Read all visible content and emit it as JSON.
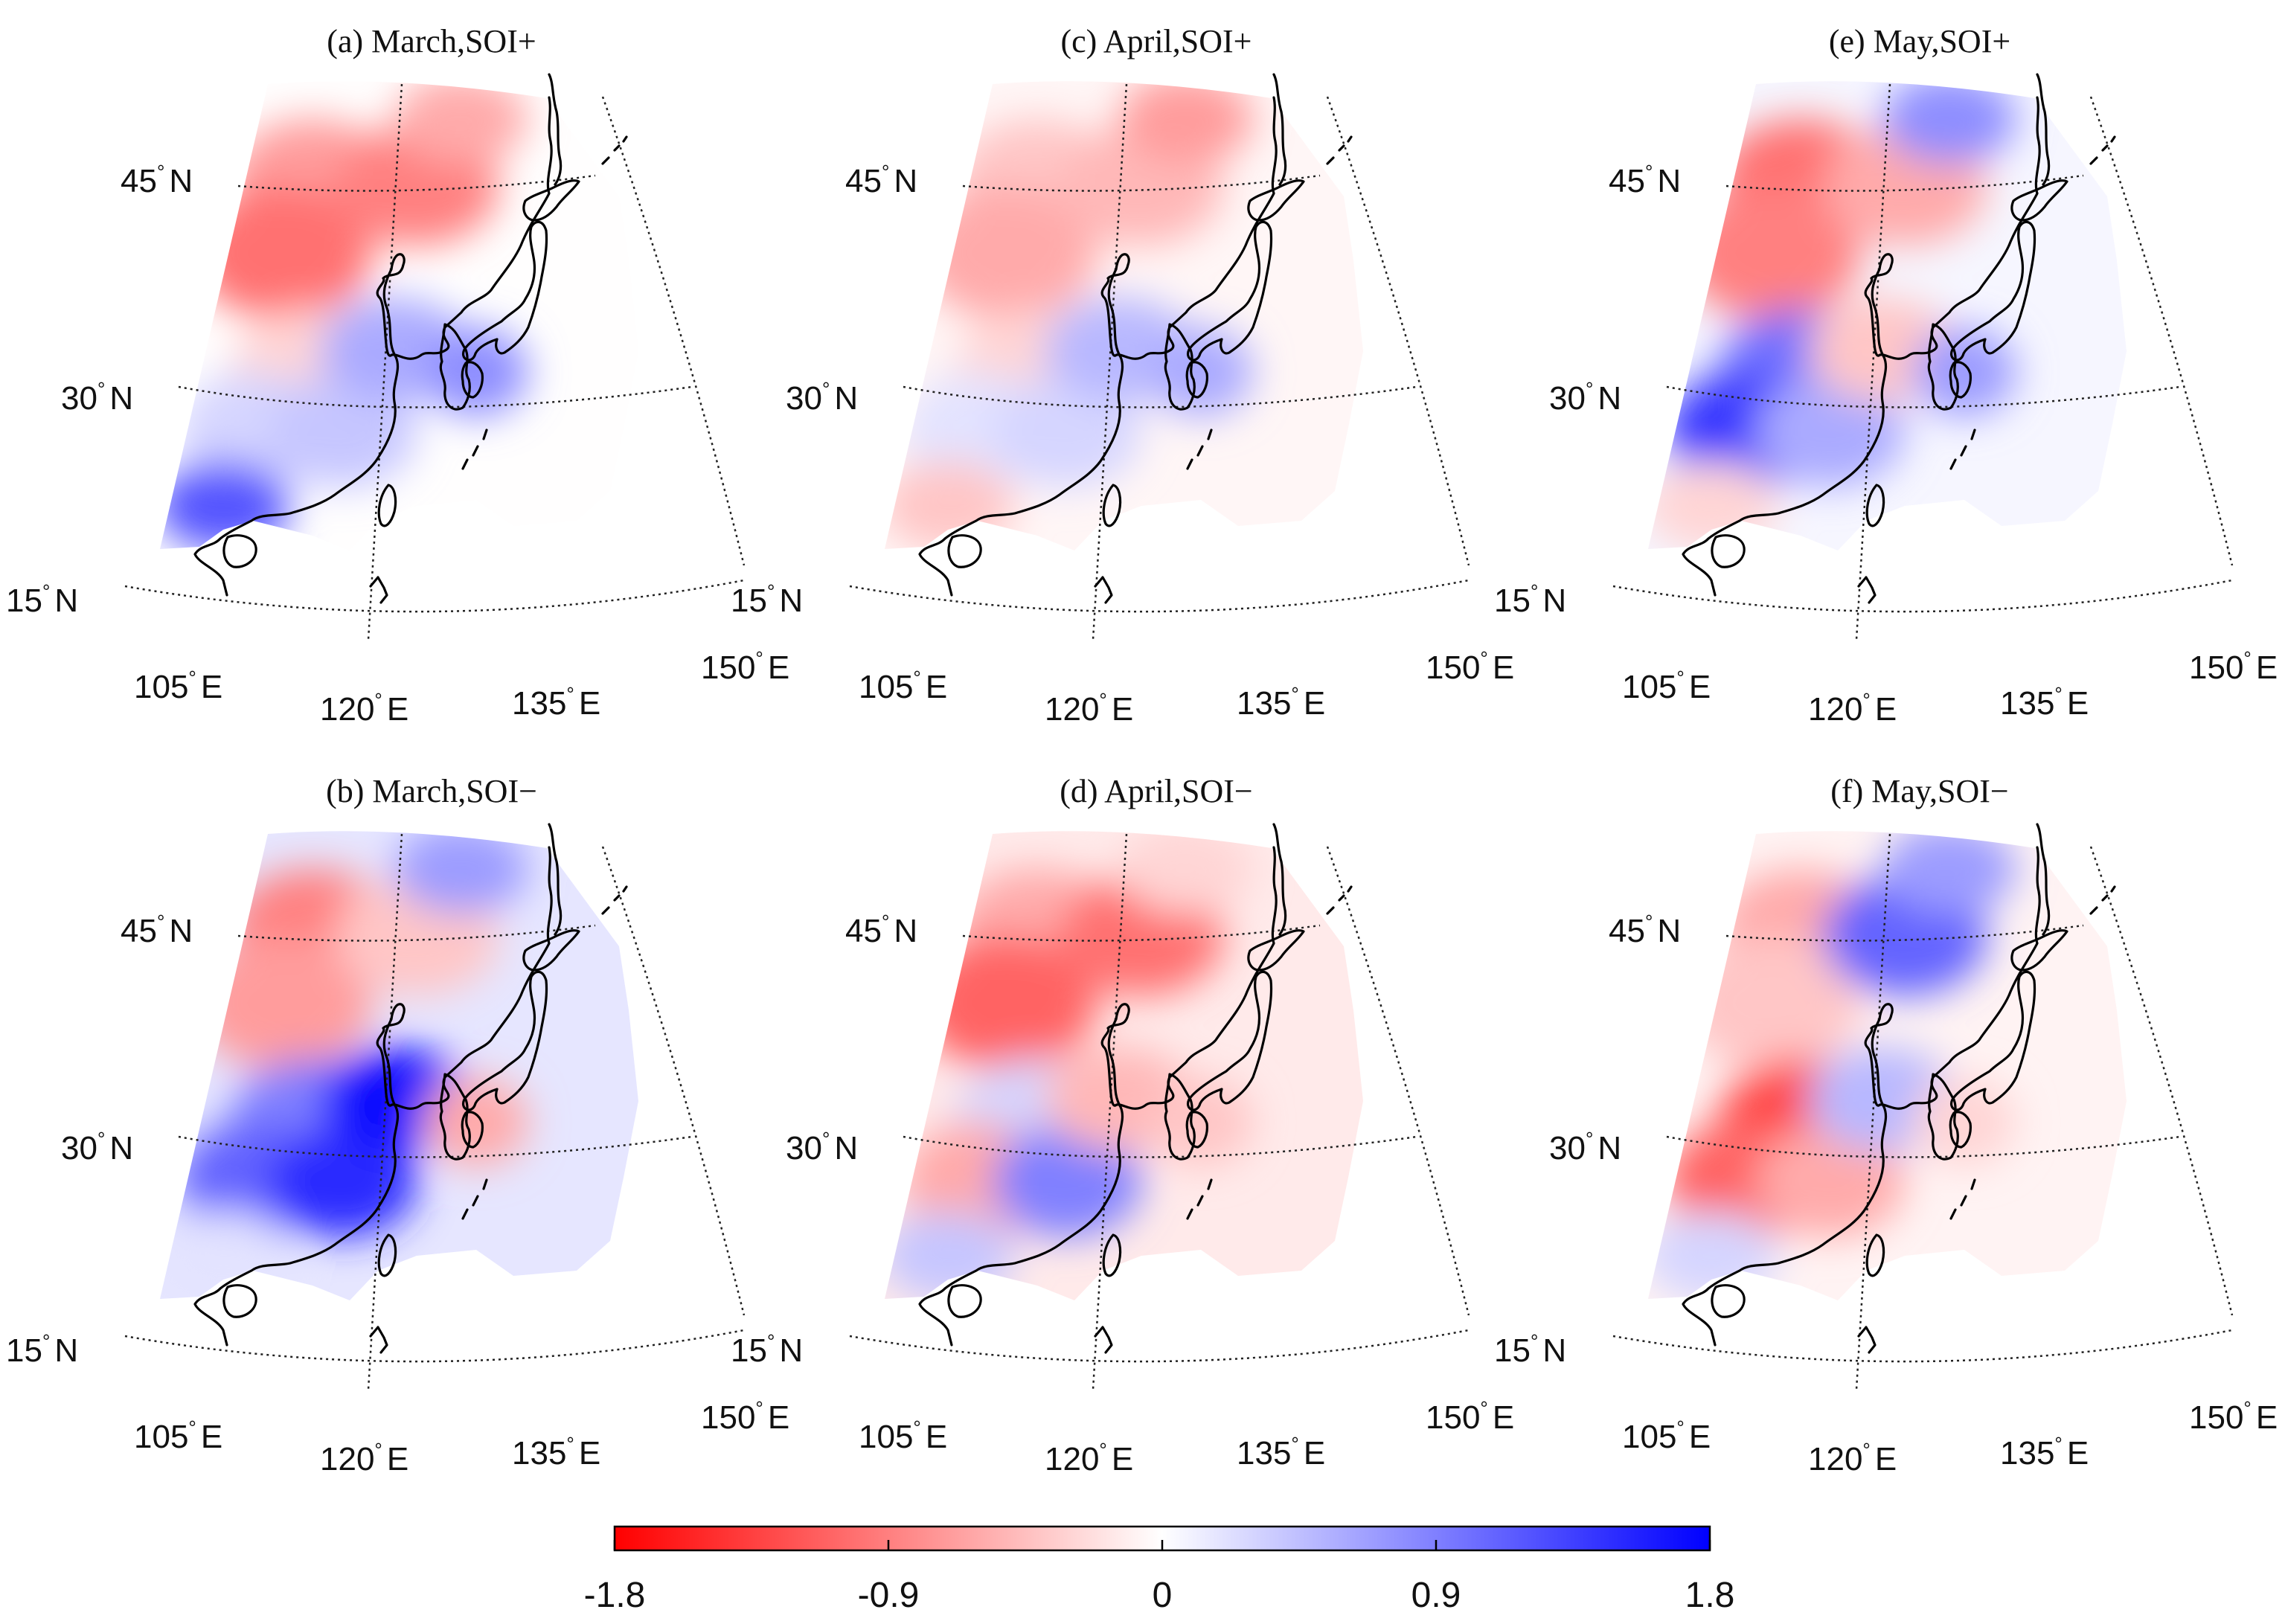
{
  "figure": {
    "panels": [
      {
        "title": "(a) March,SOI+",
        "month": "March",
        "phase": "SOI+",
        "field": [
          -0.7,
          -1.0,
          -0.9,
          -0.6,
          -0.3,
          0.3,
          0.4,
          0.6,
          0.8,
          1.2
        ]
      },
      {
        "title": "(b) March,SOI−",
        "month": "March",
        "phase": "SOI−",
        "field": [
          -0.9,
          -0.7,
          -0.4,
          0.7,
          0.9,
          1.1,
          1.5,
          1.7,
          -0.6,
          0.2
        ]
      },
      {
        "title": "(c) April,SOI+",
        "month": "April",
        "phase": "SOI+",
        "field": [
          -0.4,
          -0.6,
          -0.5,
          -0.7,
          -0.3,
          0.2,
          0.3,
          0.5,
          0.6,
          -0.4
        ]
      },
      {
        "title": "(d) April,SOI−",
        "month": "April",
        "phase": "SOI−",
        "field": [
          -0.6,
          -1.1,
          -1.0,
          -0.3,
          0.3,
          -0.6,
          0.9,
          -0.5,
          -0.4,
          0.4
        ]
      },
      {
        "title": "(e) May,SOI+",
        "month": "May",
        "phase": "SOI+",
        "field": [
          -1.0,
          -0.9,
          -0.6,
          0.8,
          1.0,
          1.4,
          0.6,
          -0.4,
          0.7,
          -0.3
        ]
      },
      {
        "title": "(f) May,SOI−",
        "month": "May",
        "phase": "SOI−",
        "field": [
          -0.6,
          -0.4,
          1.1,
          0.7,
          -1.3,
          -1.1,
          -0.6,
          0.5,
          -0.3,
          0.3
        ]
      }
    ],
    "axes": {
      "lat_labels": [
        "45",
        "30",
        "15"
      ],
      "lat_suffix": "N",
      "lon_labels": [
        "105",
        "120",
        "135",
        "150"
      ],
      "lon_suffix": "E",
      "degree_symbol": "°",
      "lat_values": [
        45,
        30,
        15
      ],
      "lon_values": [
        105,
        120,
        135,
        150
      ]
    },
    "colorbar": {
      "min": -1.8,
      "max": 1.8,
      "ticks": [
        -1.8,
        -0.9,
        0,
        0.9,
        1.8
      ],
      "tick_labels": [
        "-1.8",
        "-0.9",
        "0",
        "0.9",
        "1.8"
      ],
      "neg_color": "#ff0000",
      "mid_color": "#ffffff",
      "pos_color": "#0000ff"
    }
  }
}
